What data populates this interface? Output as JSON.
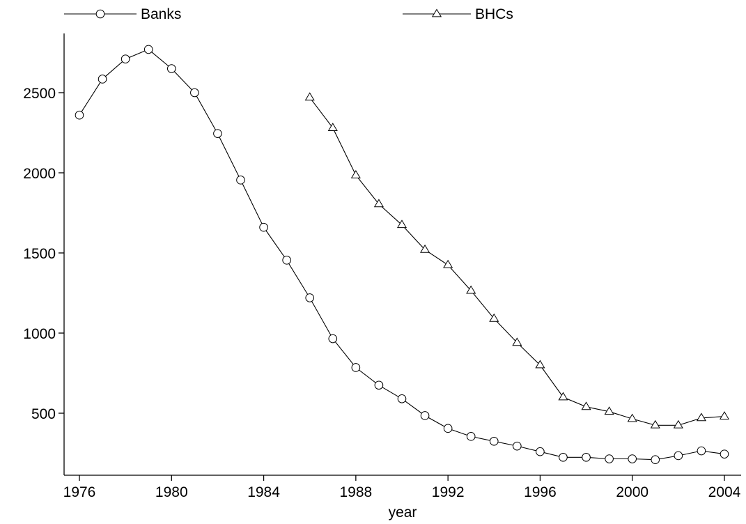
{
  "chart_data": {
    "type": "line",
    "xlabel": "year",
    "ylabel": "",
    "xlim": [
      1975.6,
      2004.6
    ],
    "ylim": [
      150,
      2830
    ],
    "xticks": [
      1976,
      1980,
      1984,
      1988,
      1992,
      1996,
      2000,
      2004
    ],
    "yticks": [
      500,
      1000,
      1500,
      2000,
      2500
    ],
    "grid": false,
    "legend_position": "top",
    "series": [
      {
        "name": "Banks",
        "marker": "circle",
        "x": [
          1976,
          1977,
          1978,
          1979,
          1980,
          1981,
          1982,
          1983,
          1984,
          1985,
          1986,
          1987,
          1988,
          1989,
          1990,
          1991,
          1992,
          1993,
          1994,
          1995,
          1996,
          1997,
          1998,
          1999,
          2000,
          2001,
          2002,
          2003,
          2004
        ],
        "y": [
          2360,
          2585,
          2710,
          2770,
          2650,
          2500,
          2245,
          1955,
          1660,
          1455,
          1220,
          965,
          785,
          675,
          590,
          485,
          405,
          355,
          325,
          295,
          260,
          225,
          225,
          215,
          215,
          210,
          235,
          265,
          245
        ]
      },
      {
        "name": "BHCs",
        "marker": "triangle",
        "x": [
          1986,
          1987,
          1988,
          1989,
          1990,
          1991,
          1992,
          1993,
          1994,
          1995,
          1996,
          1997,
          1998,
          1999,
          2000,
          2001,
          2002,
          2003,
          2004
        ],
        "y": [
          2470,
          2280,
          1985,
          1805,
          1675,
          1520,
          1425,
          1265,
          1090,
          940,
          800,
          600,
          540,
          510,
          465,
          425,
          425,
          470,
          480
        ]
      }
    ]
  }
}
